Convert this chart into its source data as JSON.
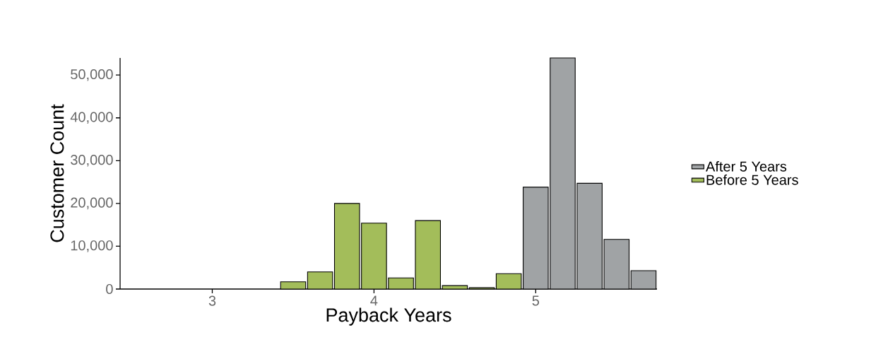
{
  "chart_data": {
    "type": "bar",
    "xlabel": "Payback Years",
    "ylabel": "Customer Count",
    "series": [
      {
        "name": "After 5 Years",
        "color": "#a0a3a5",
        "x": [
          5.0,
          5.1667,
          5.3333,
          5.5,
          5.6667
        ],
        "values": [
          23800,
          54000,
          24700,
          11600,
          4300
        ]
      },
      {
        "name": "Before 5 Years",
        "color": "#a3bd5a",
        "x": [
          3.5,
          3.6667,
          3.8333,
          4.0,
          4.1667,
          4.3333,
          4.5,
          4.6667,
          4.8333
        ],
        "values": [
          1700,
          4000,
          20000,
          15400,
          2600,
          16000,
          800,
          300,
          3600
        ]
      }
    ],
    "xlim": [
      2.43,
      5.75
    ],
    "xticks": [
      3,
      4,
      5
    ],
    "ylim": [
      0,
      54000
    ],
    "yticks": [
      {
        "value": 0,
        "label": "0"
      },
      {
        "value": 10000,
        "label": "10,000"
      },
      {
        "value": 20000,
        "label": "20,000"
      },
      {
        "value": 30000,
        "label": "30,000"
      },
      {
        "value": 40000,
        "label": "40,000"
      },
      {
        "value": 50000,
        "label": "50,000"
      }
    ],
    "grid": false,
    "legend": "right"
  }
}
